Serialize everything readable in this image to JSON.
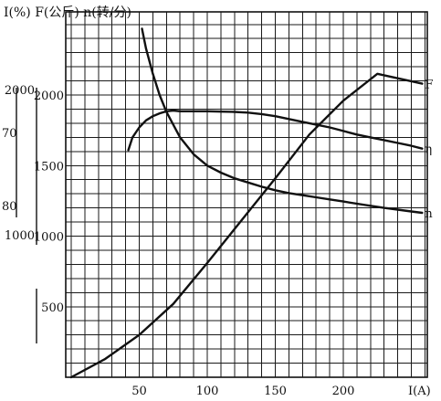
{
  "chart_data": {
    "type": "line",
    "header": "I(%) F(公斤) n(转/分)",
    "xlabel": "I(A)",
    "x_ticks": [
      {
        "value": 50,
        "label": "50"
      },
      {
        "value": 100,
        "label": "100"
      },
      {
        "value": 150,
        "label": "150"
      },
      {
        "value": 200,
        "label": "200"
      }
    ],
    "xlim": [
      0,
      260
    ],
    "y_n_ticks": [
      {
        "value": 500,
        "label": "500"
      },
      {
        "value": 1000,
        "label": "1000"
      },
      {
        "value": 1500,
        "label": "1500"
      },
      {
        "value": 2000,
        "label": "2000"
      }
    ],
    "y_F_ticks": [
      {
        "value": 1000,
        "label": "1000"
      },
      {
        "value": 2000,
        "label": "2000"
      }
    ],
    "y_eta_ticks": [
      {
        "value": 70,
        "label": "70"
      },
      {
        "value": 80,
        "label": "80"
      }
    ],
    "ylim": [
      0,
      2500
    ],
    "series": [
      {
        "name": "η",
        "x": [
          42,
          45,
          50,
          55,
          60,
          65,
          70,
          75,
          80,
          90,
          100,
          110,
          120,
          130,
          140,
          150,
          160,
          170,
          180,
          190,
          200,
          210,
          220,
          230,
          240,
          250,
          258
        ],
        "y": [
          1610,
          1700,
          1770,
          1820,
          1850,
          1870,
          1885,
          1890,
          1885,
          1885,
          1885,
          1882,
          1880,
          1875,
          1865,
          1850,
          1830,
          1810,
          1790,
          1770,
          1745,
          1720,
          1700,
          1680,
          1660,
          1640,
          1620
        ]
      },
      {
        "name": "n",
        "x": [
          52,
          55,
          60,
          65,
          70,
          80,
          90,
          100,
          110,
          120,
          130,
          140,
          150,
          160,
          170,
          180,
          190,
          200,
          210,
          220,
          230,
          240,
          250,
          258
        ],
        "y": [
          2470,
          2330,
          2150,
          2000,
          1880,
          1700,
          1580,
          1500,
          1450,
          1410,
          1380,
          1350,
          1325,
          1305,
          1290,
          1275,
          1260,
          1245,
          1230,
          1215,
          1200,
          1188,
          1175,
          1165
        ]
      },
      {
        "name": "F",
        "x": [
          0,
          25,
          50,
          75,
          100,
          125,
          150,
          175,
          200,
          225,
          258
        ],
        "y": [
          0,
          130,
          300,
          520,
          810,
          1110,
          1410,
          1720,
          1960,
          2150,
          2080
        ]
      }
    ],
    "grid": true
  }
}
